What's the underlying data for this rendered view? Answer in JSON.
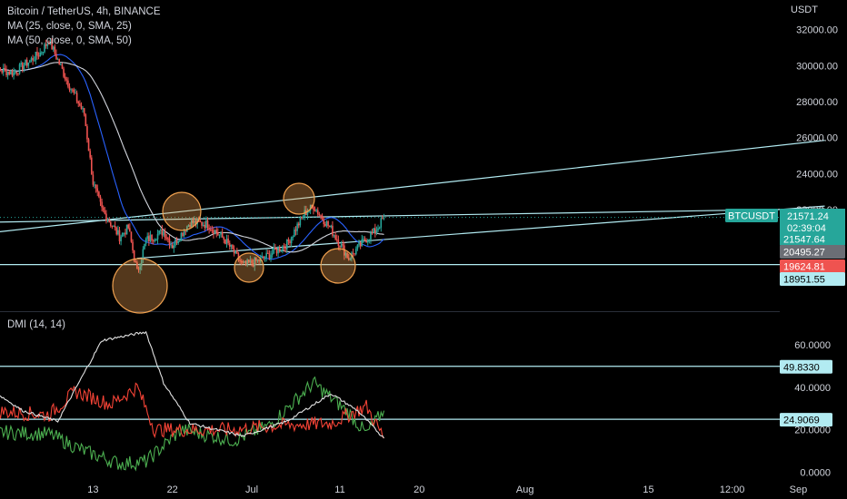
{
  "header": {
    "symbol_line": "Bitcoin / TetherUS, 4h, BINANCE",
    "ma25_label": "MA (25, close, 0, SMA, 25)",
    "ma50_label": "MA (50, close, 0, SMA, 50)",
    "currency": "USDT"
  },
  "dmi": {
    "label": "DMI (14, 14)"
  },
  "badges": {
    "symbol": "BTCUSDT",
    "last_price": "21571.24",
    "countdown": "02:39:04",
    "ma25_value": "21547.64",
    "ma50_value": "20495.27",
    "line_red": "19624.81",
    "line_low": "18951.55",
    "dmi_line_high": "49.8330",
    "dmi_line_low": "24.9069"
  },
  "colors": {
    "up": "#26a69a",
    "down": "#ef5350",
    "ma25": "#d1d4dc",
    "ma50": "#2962ff",
    "circle": "#f0a14f",
    "hline": "#b2ebf2",
    "plus_di": "#4caf50",
    "minus_di": "#f44336",
    "adx": "#e0e0e0"
  },
  "chart_data": [
    {
      "type": "candlestick",
      "title": "Bitcoin / TetherUS, 4h, BINANCE",
      "ylabel": "USDT",
      "ylim": [
        15200,
        33500
      ],
      "y_ticks": [
        "32000.00",
        "30000.00",
        "28000.00",
        "26000.00",
        "24000.00",
        "22000.00"
      ],
      "x_ticks": [
        "13",
        "22",
        "Jul",
        "11",
        "20",
        "Aug",
        "15",
        "12:00",
        "Sep"
      ],
      "x_tick_dates": [
        "2022-06-13",
        "2022-06-22",
        "2022-07-01",
        "2022-07-11",
        "2022-07-20",
        "2022-08-01",
        "2022-08-15",
        "2022-08-24T12:00",
        "2022-09-01"
      ],
      "price_path": [
        [
          "2022-06-01",
          29900
        ],
        [
          "2022-06-04",
          29600
        ],
        [
          "2022-06-07",
          30700
        ],
        [
          "2022-06-08",
          31400
        ],
        [
          "2022-06-10",
          29200
        ],
        [
          "2022-06-12",
          27300
        ],
        [
          "2022-06-13",
          23500
        ],
        [
          "2022-06-14",
          22000
        ],
        [
          "2022-06-16",
          20500
        ],
        [
          "2022-06-17",
          21000
        ],
        [
          "2022-06-18",
          18500
        ],
        [
          "2022-06-19",
          20300
        ],
        [
          "2022-06-21",
          20800
        ],
        [
          "2022-06-22",
          20000
        ],
        [
          "2022-06-24",
          21300
        ],
        [
          "2022-06-26",
          21200
        ],
        [
          "2022-06-28",
          20300
        ],
        [
          "2022-06-30",
          18900
        ],
        [
          "2022-07-02",
          19200
        ],
        [
          "2022-07-05",
          20100
        ],
        [
          "2022-07-07",
          21800
        ],
        [
          "2022-07-08",
          22200
        ],
        [
          "2022-07-10",
          20900
        ],
        [
          "2022-07-12",
          19300
        ],
        [
          "2022-07-14",
          20400
        ],
        [
          "2022-07-15",
          20800
        ],
        [
          "2022-07-16",
          21571
        ]
      ],
      "series": [
        {
          "name": "MA (25, close, 0, SMA, 25)",
          "value": 21547.64
        },
        {
          "name": "MA (50, close, 0, SMA, 50)",
          "value": 20495.27
        }
      ],
      "horizontal_lines": [
        19624.81,
        18951.55
      ],
      "last_price": 21571.24,
      "trendlines": [
        {
          "from": [
            "2022-06-01",
            21300
          ],
          "to": [
            "2022-09-04",
            22050
          ]
        },
        {
          "from": [
            "2022-06-01",
            20700
          ],
          "to": [
            "2022-09-04",
            25850
          ]
        },
        {
          "from": [
            "2022-06-18",
            19300
          ],
          "to": [
            "2022-09-04",
            22200
          ]
        }
      ],
      "annotations": [
        "circle 2022-06-18 ~18500",
        "circle 2022-06-23 ~21800",
        "circle 2022-07-01 ~19000",
        "circle 2022-07-09 ~22200",
        "circle 2022-07-14 ~19000"
      ]
    },
    {
      "type": "line",
      "title": "DMI (14, 14)",
      "ylim": [
        0,
        68
      ],
      "y_ticks": [
        "60.0000",
        "40.0000",
        "20.0000",
        "0.0000"
      ],
      "series": [
        {
          "name": "+DI",
          "values": [
            [
              "2022-06-01",
              19
            ],
            [
              "2022-06-08",
              18
            ],
            [
              "2022-06-12",
              10
            ],
            [
              "2022-06-16",
              4
            ],
            [
              "2022-06-19",
              5
            ],
            [
              "2022-06-23",
              20
            ],
            [
              "2022-06-29",
              15
            ],
            [
              "2022-07-03",
              22
            ],
            [
              "2022-07-08",
              42
            ],
            [
              "2022-07-12",
              28
            ],
            [
              "2022-07-14",
              18
            ],
            [
              "2022-07-16",
              29
            ]
          ]
        },
        {
          "name": "-DI",
          "values": [
            [
              "2022-06-01",
              29
            ],
            [
              "2022-06-08",
              27
            ],
            [
              "2022-06-11",
              38
            ],
            [
              "2022-06-15",
              32
            ],
            [
              "2022-06-18",
              40
            ],
            [
              "2022-06-20",
              20
            ],
            [
              "2022-06-29",
              20
            ],
            [
              "2022-07-04",
              22
            ],
            [
              "2022-07-10",
              23
            ],
            [
              "2022-07-14",
              31
            ],
            [
              "2022-07-16",
              16
            ]
          ]
        },
        {
          "name": "ADX",
          "values": [
            [
              "2022-06-01",
              40
            ],
            [
              "2022-06-05",
              29
            ],
            [
              "2022-06-09",
              24
            ],
            [
              "2022-06-14",
              62
            ],
            [
              "2022-06-19",
              66
            ],
            [
              "2022-06-21",
              42
            ],
            [
              "2022-06-24",
              23
            ],
            [
              "2022-06-30",
              17
            ],
            [
              "2022-07-05",
              24
            ],
            [
              "2022-07-10",
              37
            ],
            [
              "2022-07-13",
              29
            ],
            [
              "2022-07-16",
              16
            ]
          ]
        }
      ],
      "horizontal_lines": [
        49.833,
        24.9069
      ]
    }
  ]
}
